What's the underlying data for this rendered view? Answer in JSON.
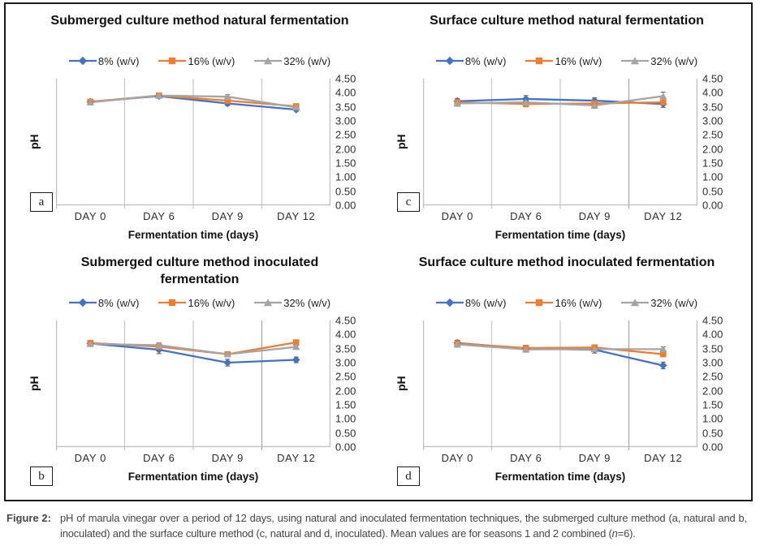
{
  "caption": {
    "label": "Figure 2:",
    "text_main": "pH of marula vinegar over a period of 12 days, using natural and inoculated fermentation techniques, the submerged culture method (a, natural and b, inoculated) and the surface culture method (c, natural and d, inoculated). Mean values are for seasons 1 and 2 combined (",
    "italic_var": "n",
    "text_tail": "=6)."
  },
  "palette": {
    "series_blue": "#4472C4",
    "series_orange": "#ED7D31",
    "series_gray": "#A5A5A5",
    "gridline": "#C6C6C6",
    "gridline_dark": "#A3A3A3",
    "axis_line": "#BDBDBD",
    "error_bar": "#595959"
  },
  "chart_data": [
    {
      "type": "line",
      "panel_letter": "a",
      "title": "Submerged culture method natural fermentation",
      "xlabel": "Fermentation time (days)",
      "ylabel": "pH",
      "ylim": [
        0,
        4.5
      ],
      "y_ticks": [
        "4.50",
        "4.00",
        "3.50",
        "3.00",
        "2.50",
        "2.00",
        "1.50",
        "1.00",
        "0.50",
        "0.00"
      ],
      "categories": [
        "DAY 0",
        "DAY 6",
        "DAY 9",
        "DAY 12"
      ],
      "legend_position": "top",
      "grid": "vertical-category-boundaries",
      "series": [
        {
          "name": "8% (w/v)",
          "color": "#4472C4",
          "marker": "diamond",
          "values": [
            3.68,
            3.88,
            3.62,
            3.4
          ],
          "errors": [
            0.05,
            0.04,
            0.08,
            0.06
          ]
        },
        {
          "name": "16% (w/v)",
          "color": "#ED7D31",
          "marker": "square",
          "values": [
            3.68,
            3.9,
            3.72,
            3.52
          ],
          "errors": [
            0.05,
            0.04,
            0.06,
            0.05
          ]
        },
        {
          "name": "32% (w/v)",
          "color": "#A5A5A5",
          "marker": "triangle",
          "values": [
            3.66,
            3.9,
            3.86,
            3.48
          ],
          "errors": [
            0.05,
            0.04,
            0.07,
            0.05
          ]
        }
      ]
    },
    {
      "type": "line",
      "panel_letter": "c",
      "title": "Surface culture method natural fermentation",
      "xlabel": "Fermentation time (days)",
      "ylabel": "pH",
      "ylim": [
        0,
        4.5
      ],
      "y_ticks": [
        "4.50",
        "4.00",
        "3.50",
        "3.00",
        "2.50",
        "2.00",
        "1.50",
        "1.00",
        "0.50",
        "0.00"
      ],
      "categories": [
        "DAY 0",
        "DAY 6",
        "DAY 9",
        "DAY 12"
      ],
      "legend_position": "top",
      "grid": "vertical-category-boundaries",
      "series": [
        {
          "name": "8% (w/v)",
          "color": "#4472C4",
          "marker": "diamond",
          "values": [
            3.7,
            3.78,
            3.72,
            3.6
          ],
          "errors": [
            0.1,
            0.12,
            0.1,
            0.12
          ]
        },
        {
          "name": "16% (w/v)",
          "color": "#ED7D31",
          "marker": "square",
          "values": [
            3.66,
            3.6,
            3.62,
            3.66
          ],
          "errors": [
            0.08,
            0.1,
            0.08,
            0.08
          ]
        },
        {
          "name": "32% (w/v)",
          "color": "#A5A5A5",
          "marker": "triangle",
          "values": [
            3.62,
            3.66,
            3.55,
            3.88
          ],
          "errors": [
            0.1,
            0.06,
            0.1,
            0.14
          ]
        }
      ]
    },
    {
      "type": "line",
      "panel_letter": "b",
      "title": "Submerged culture method inoculated fermentation",
      "xlabel": "Fermentation time (days)",
      "ylabel": "pH",
      "ylim": [
        0,
        4.5
      ],
      "y_ticks": [
        "4.50",
        "4.00",
        "3.50",
        "3.00",
        "2.50",
        "2.00",
        "1.50",
        "1.00",
        "0.50",
        "0.00"
      ],
      "categories": [
        "DAY 0",
        "DAY 6",
        "DAY 9",
        "DAY 12"
      ],
      "legend_position": "top",
      "grid": "vertical-category-boundaries",
      "series": [
        {
          "name": "8% (w/v)",
          "color": "#4472C4",
          "marker": "diamond",
          "values": [
            3.68,
            3.46,
            3.0,
            3.1
          ],
          "errors": [
            0.08,
            0.14,
            0.12,
            0.1
          ]
        },
        {
          "name": "16% (w/v)",
          "color": "#ED7D31",
          "marker": "square",
          "values": [
            3.7,
            3.57,
            3.3,
            3.72
          ],
          "errors": [
            0.06,
            0.06,
            0.06,
            0.05
          ]
        },
        {
          "name": "32% (w/v)",
          "color": "#A5A5A5",
          "marker": "triangle",
          "values": [
            3.67,
            3.62,
            3.3,
            3.56
          ],
          "errors": [
            0.08,
            0.08,
            0.08,
            0.05
          ]
        }
      ]
    },
    {
      "type": "line",
      "panel_letter": "d",
      "title": "Surface culture method inoculated fermentation",
      "xlabel": "Fermentation time (days)",
      "ylabel": "pH",
      "ylim": [
        0,
        4.5
      ],
      "y_ticks": [
        "4.50",
        "4.00",
        "3.50",
        "3.00",
        "2.50",
        "2.00",
        "1.50",
        "1.00",
        "0.50",
        "0.00"
      ],
      "categories": [
        "DAY 0",
        "DAY 6",
        "DAY 9",
        "DAY 12"
      ],
      "legend_position": "top",
      "grid": "vertical-category-boundaries",
      "series": [
        {
          "name": "8% (w/v)",
          "color": "#4472C4",
          "marker": "diamond",
          "values": [
            3.7,
            3.5,
            3.46,
            2.9
          ],
          "errors": [
            0.1,
            0.1,
            0.12,
            0.12
          ]
        },
        {
          "name": "16% (w/v)",
          "color": "#ED7D31",
          "marker": "square",
          "values": [
            3.68,
            3.52,
            3.54,
            3.3
          ],
          "errors": [
            0.08,
            0.1,
            0.05,
            0.06
          ]
        },
        {
          "name": "32% (w/v)",
          "color": "#A5A5A5",
          "marker": "triangle",
          "values": [
            3.65,
            3.47,
            3.48,
            3.48
          ],
          "errors": [
            0.1,
            0.1,
            0.05,
            0.08
          ]
        }
      ]
    }
  ]
}
